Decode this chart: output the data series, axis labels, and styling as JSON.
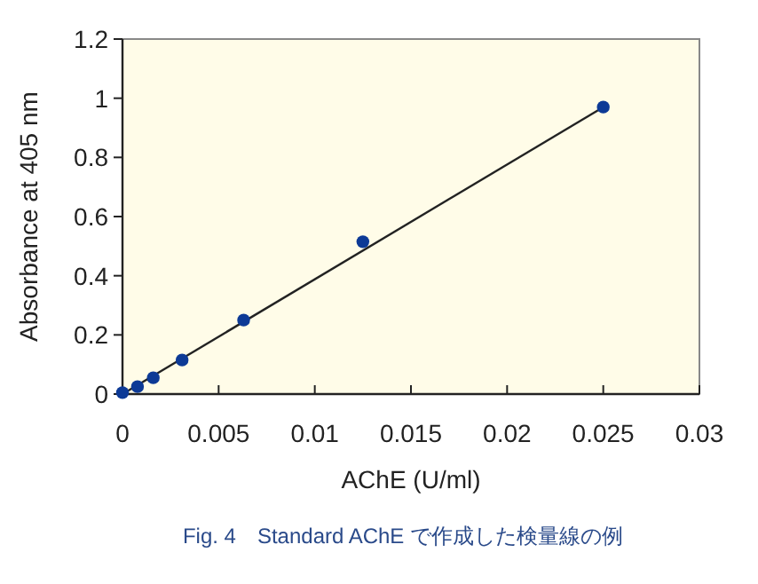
{
  "chart_data": {
    "type": "scatter",
    "xlabel": "AChE (U/ml)",
    "ylabel": "Absorbance at 405 nm",
    "annotations": [
      "Fig. 4　Standard AChE で作成した検量線の例"
    ],
    "x": [
      0,
      0.00078,
      0.0016,
      0.0031,
      0.0063,
      0.0125,
      0.025
    ],
    "series": [
      {
        "marker": "circle",
        "color": "#0d3a96",
        "values": [
          0.005,
          0.025,
          0.055,
          0.115,
          0.25,
          0.515,
          0.97
        ]
      },
      {
        "type": "line",
        "color": "#222222",
        "x": [
          0,
          0.025
        ],
        "values": [
          0,
          0.97
        ]
      }
    ],
    "xlim": [
      0,
      0.03
    ],
    "xticks": [
      0,
      0.005,
      0.01,
      0.015,
      0.02,
      0.025,
      0.03
    ],
    "ylim": [
      0,
      1.2
    ],
    "yticks": [
      0,
      0.2,
      0.4,
      0.6,
      0.8,
      1,
      1.2
    ],
    "grid": false
  }
}
